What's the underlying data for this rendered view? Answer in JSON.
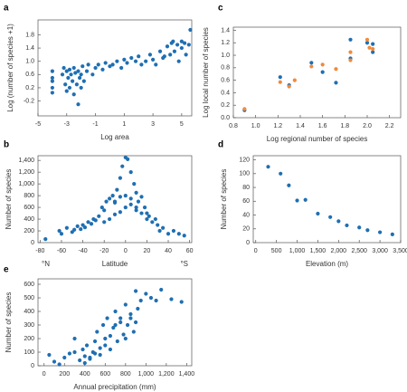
{
  "chart_data": [
    {
      "type": "scatter",
      "label": "a",
      "xlabel": "Log area",
      "ylabel": "Log (number of species +1)",
      "xlim": [
        -5,
        5.7
      ],
      "ylim": [
        -0.65,
        2.25
      ],
      "xticks": [
        -5,
        -3,
        -1,
        1,
        3,
        5
      ],
      "yticks": [
        -0.2,
        0.2,
        0.6,
        {
          "value": 1,
          "label": "1.0"
        },
        1.4,
        1.8
      ],
      "series": [
        {
          "color": "#1f6fb2",
          "x": [
            -4,
            -4,
            -4,
            -4,
            -4,
            -3.3,
            -3.2,
            -3.1,
            -3,
            -3,
            -2.9,
            -2.8,
            -2.8,
            -2.7,
            -2.6,
            -2.5,
            -2.5,
            -2.4,
            -2.3,
            -2.2,
            -2.2,
            -2.1,
            -2,
            -2,
            -1.9,
            -1.8,
            -1.6,
            -1.5,
            -1.2,
            -1,
            -0.8,
            -0.5,
            -0.3,
            0,
            0.2,
            0.5,
            0.8,
            1,
            1.2,
            1.5,
            1.8,
            2,
            2.2,
            2.5,
            2.8,
            3,
            3.2,
            3.5,
            3.7,
            4,
            4.2,
            4.3,
            4.5,
            4.7,
            5,
            5,
            5.2,
            5.3,
            5.5,
            5.6,
            4.8,
            4.4,
            3.8
          ],
          "values": [
            0.7,
            0.5,
            0.4,
            0.2,
            0.05,
            0.6,
            0.8,
            0.3,
            0.7,
            0.1,
            0.5,
            0.75,
            0.2,
            0.6,
            0.4,
            0.8,
            0,
            0.65,
            0.3,
            0.7,
            -0.3,
            0.5,
            0.6,
            0.2,
            0.85,
            0.4,
            0.7,
            0.9,
            0.6,
            0.8,
            0.9,
            0.75,
            0.95,
            0.85,
            0.9,
            1.0,
            0.8,
            1.05,
            0.95,
            1.1,
            1.0,
            1.15,
            0.9,
            1.0,
            1.2,
            1.05,
            0.9,
            1.3,
            1.1,
            1.45,
            1.2,
            1.55,
            1.3,
            1.5,
            1.6,
            1.4,
            1.55,
            1.2,
            1.5,
            1.95,
            1.0,
            1.6,
            1.15
          ]
        }
      ]
    },
    {
      "type": "scatter",
      "label": "c",
      "xlabel": "Log regional number of species",
      "ylabel": "Log local number of species",
      "xlim": [
        0.8,
        2.3
      ],
      "ylim": [
        0,
        1.45
      ],
      "xticks": [
        0.8,
        {
          "value": 1,
          "label": "1.0"
        },
        1.2,
        1.4,
        1.6,
        1.8,
        {
          "value": 2,
          "label": "2.0"
        },
        2.2
      ],
      "yticks": [
        {
          "value": 0,
          "label": "0.0"
        },
        0.2,
        0.4,
        0.6,
        0.8,
        {
          "value": 1,
          "label": "1.0"
        },
        1.2,
        1.4
      ],
      "series": [
        {
          "color": "#1f6fb2",
          "x": [
            0.9,
            1.22,
            1.3,
            1.5,
            1.6,
            1.72,
            1.85,
            1.85,
            2.0,
            2.05,
            2.05
          ],
          "values": [
            0.12,
            0.65,
            0.52,
            0.88,
            0.73,
            0.56,
            1.25,
            0.95,
            1.2,
            1.18,
            1.05
          ]
        },
        {
          "color": "#f08a3c",
          "x": [
            0.9,
            1.22,
            1.3,
            1.35,
            1.5,
            1.6,
            1.72,
            1.85,
            1.85,
            2.0,
            2.02,
            2.05
          ],
          "values": [
            0.14,
            0.57,
            0.5,
            0.6,
            0.82,
            0.85,
            0.78,
            1.05,
            0.92,
            1.25,
            1.12,
            1.1
          ]
        }
      ]
    },
    {
      "type": "scatter",
      "label": "b",
      "xlabel": "Latitude",
      "ylabel": "Number of species",
      "annotations": [
        "°N",
        "°S"
      ],
      "xlim": [
        -82,
        62
      ],
      "ylim": [
        0,
        1480
      ],
      "xticks": [
        -80,
        -60,
        -40,
        -20,
        0,
        20,
        40,
        60
      ],
      "yticks": [
        0,
        200,
        400,
        600,
        800,
        {
          "value": 1000,
          "label": "1,000"
        },
        {
          "value": 1200,
          "label": "1,200"
        },
        {
          "value": 1400,
          "label": "1,400"
        }
      ],
      "series": [
        {
          "color": "#1f6fb2",
          "x": [
            -75,
            -62,
            -60,
            -55,
            -50,
            -48,
            -45,
            -42,
            -40,
            -38,
            -35,
            -32,
            -30,
            -28,
            -25,
            -22,
            -20,
            -18,
            -15,
            -12,
            -10,
            -8,
            -5,
            -3,
            0,
            2,
            5,
            8,
            10,
            12,
            15,
            18,
            20,
            22,
            25,
            28,
            30,
            32,
            35,
            40,
            45,
            50,
            55,
            -20,
            -15,
            -10,
            -5,
            0,
            5,
            10,
            15,
            20,
            -10,
            0,
            10,
            -5,
            5
          ],
          "values": [
            60,
            200,
            150,
            250,
            180,
            220,
            280,
            230,
            300,
            260,
            350,
            320,
            400,
            380,
            450,
            600,
            550,
            700,
            750,
            800,
            680,
            900,
            1100,
            1300,
            1450,
            1420,
            1200,
            1000,
            850,
            700,
            780,
            600,
            500,
            450,
            350,
            400,
            300,
            200,
            250,
            150,
            200,
            150,
            120,
            350,
            400,
            480,
            520,
            600,
            650,
            550,
            500,
            400,
            700,
            800,
            600,
            780,
            750
          ]
        }
      ]
    },
    {
      "type": "scatter",
      "label": "d",
      "xlabel": "Elevation (m)",
      "ylabel": "Number of species",
      "xlim": [
        -60,
        3500
      ],
      "ylim": [
        0,
        126
      ],
      "xticks": [
        0,
        500,
        {
          "value": 1000,
          "label": "1,000"
        },
        {
          "value": 1500,
          "label": "1,500"
        },
        {
          "value": 2000,
          "label": "2,000"
        },
        {
          "value": 2500,
          "label": "2,500"
        },
        {
          "value": 3000,
          "label": "3,000"
        },
        {
          "value": 3500,
          "label": "3,500"
        }
      ],
      "yticks": [
        0,
        20,
        40,
        60,
        80,
        100,
        120
      ],
      "series": [
        {
          "color": "#1f6fb2",
          "x": [
            300,
            600,
            800,
            1000,
            1200,
            1500,
            1800,
            2000,
            2200,
            2500,
            2700,
            3000,
            3300
          ],
          "values": [
            110,
            100,
            83,
            61,
            62,
            42,
            37,
            31,
            25,
            22,
            18,
            15,
            12
          ]
        }
      ]
    },
    {
      "type": "scatter",
      "label": "e",
      "xlabel": "Annual precipitation (mm)",
      "ylabel": "Number of species",
      "xlim": [
        -60,
        1450
      ],
      "ylim": [
        0,
        640
      ],
      "xticks": [
        0,
        200,
        400,
        600,
        800,
        {
          "value": 1000,
          "label": "1,000"
        },
        {
          "value": 1200,
          "label": "1,200"
        },
        {
          "value": 1400,
          "label": "1,400"
        }
      ],
      "yticks": [
        0,
        100,
        200,
        300,
        400,
        500,
        600
      ],
      "series": [
        {
          "color": "#1f6fb2",
          "x": [
            50,
            100,
            150,
            200,
            250,
            300,
            350,
            380,
            400,
            420,
            450,
            480,
            500,
            520,
            550,
            580,
            600,
            620,
            650,
            680,
            700,
            720,
            750,
            780,
            800,
            820,
            850,
            880,
            900,
            920,
            950,
            1000,
            1050,
            1100,
            1150,
            1250,
            1350,
            300,
            400,
            500,
            600,
            700,
            800,
            900,
            450,
            550,
            650,
            750,
            850
          ],
          "values": [
            80,
            30,
            10,
            60,
            90,
            200,
            40,
            120,
            20,
            150,
            60,
            100,
            180,
            250,
            80,
            300,
            200,
            350,
            120,
            280,
            400,
            180,
            350,
            230,
            450,
            300,
            380,
            250,
            550,
            420,
            480,
            530,
            500,
            480,
            560,
            490,
            470,
            100,
            70,
            90,
            150,
            300,
            200,
            320,
            50,
            130,
            220,
            320,
            350
          ]
        }
      ]
    }
  ]
}
